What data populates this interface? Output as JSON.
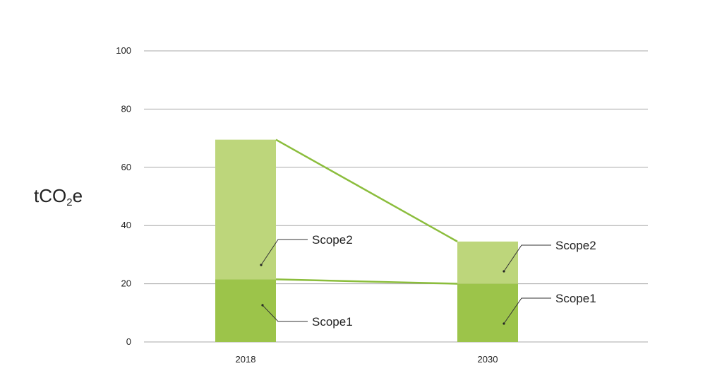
{
  "chart_data": {
    "type": "bar",
    "stacked": true,
    "categories": [
      "2018",
      "2030"
    ],
    "series": [
      {
        "name": "Scope1",
        "values": [
          21.5,
          20
        ],
        "color": "#9cc44a"
      },
      {
        "name": "Scope2",
        "values": [
          48,
          14.5
        ],
        "color": "#bdd67b"
      }
    ],
    "ylabel_main": "tCO",
    "ylabel_sub": "2",
    "ylabel_tail": "e",
    "ylim": [
      0,
      100
    ],
    "yticks": [
      0,
      20,
      40,
      60,
      80,
      100
    ],
    "grid": true,
    "connector_lines": true,
    "line_color": "#8bbd3c",
    "annotation_labels": [
      "Scope2",
      "Scope1"
    ]
  }
}
